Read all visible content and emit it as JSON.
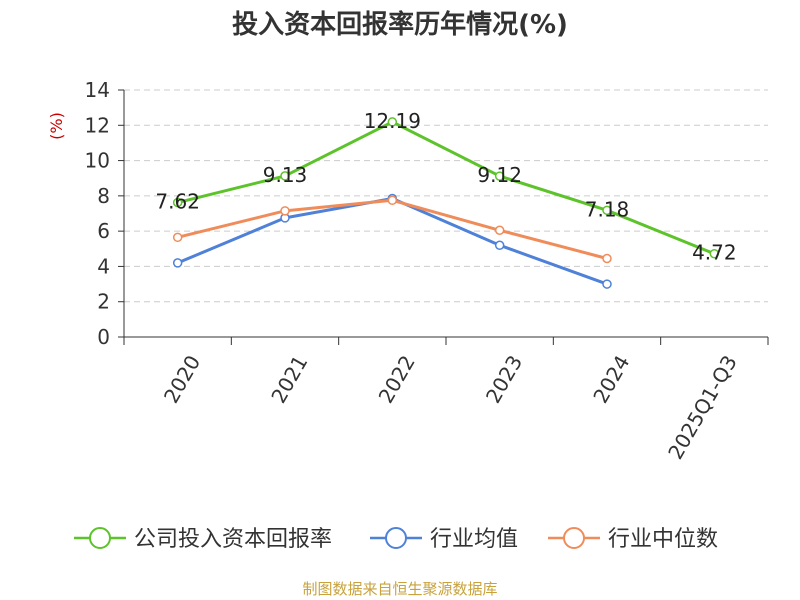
{
  "title": "投入资本回报率历年情况(%)",
  "source": "制图数据来自恒生聚源数据库",
  "colors": {
    "series_company": "#5dc32b",
    "series_avg": "#4f81d9",
    "series_median": "#f08c5a",
    "grid": "#cccccc",
    "axis": "#333333",
    "unit": "#cc0000",
    "source": "#c8a23c"
  },
  "chart_data": {
    "type": "line",
    "title": "投入资本回报率历年情况(%)",
    "ylabel": "(%)",
    "xlabel": "",
    "ylim": [
      0,
      14
    ],
    "yticks": [
      0,
      2,
      4,
      6,
      8,
      10,
      12,
      14
    ],
    "grid": true,
    "legend_position": "bottom",
    "categories": [
      "2020",
      "2021",
      "2022",
      "2023",
      "2024",
      "2025Q1-Q3"
    ],
    "series": [
      {
        "name": "公司投入资本回报率",
        "values": [
          7.62,
          9.13,
          12.19,
          9.12,
          7.18,
          4.72
        ],
        "labels": [
          "7.62",
          "9.13",
          "12.19",
          "9.12",
          "7.18",
          "4.72"
        ],
        "color": "#5dc32b"
      },
      {
        "name": "行业均值",
        "values": [
          4.2,
          6.75,
          7.85,
          5.2,
          3.0,
          null
        ],
        "color": "#4f81d9"
      },
      {
        "name": "行业中位数",
        "values": [
          5.65,
          7.15,
          7.75,
          6.05,
          4.45,
          null
        ],
        "color": "#f08c5a"
      }
    ]
  }
}
